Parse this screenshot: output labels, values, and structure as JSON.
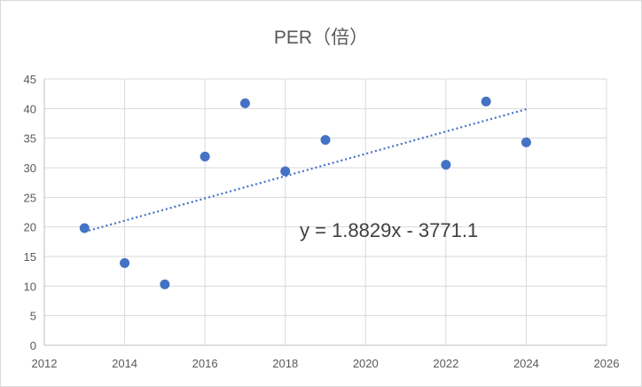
{
  "chart_data": {
    "type": "scatter",
    "title": "PER（倍）",
    "xlim": [
      2012,
      2026
    ],
    "ylim": [
      0,
      45
    ],
    "x_ticks": [
      2012,
      2014,
      2016,
      2018,
      2020,
      2022,
      2024,
      2026
    ],
    "y_ticks": [
      0,
      5,
      10,
      15,
      20,
      25,
      30,
      35,
      40,
      45
    ],
    "grid": true,
    "series": [
      {
        "points": [
          {
            "x": 2013,
            "y": 19.8
          },
          {
            "x": 2014,
            "y": 13.9
          },
          {
            "x": 2015,
            "y": 10.3
          },
          {
            "x": 2016,
            "y": 31.9
          },
          {
            "x": 2017,
            "y": 40.9
          },
          {
            "x": 2018,
            "y": 29.4
          },
          {
            "x": 2019,
            "y": 34.7
          },
          {
            "x": 2022,
            "y": 30.5
          },
          {
            "x": 2023,
            "y": 41.2
          },
          {
            "x": 2024,
            "y": 34.3
          }
        ],
        "color": "#4472c4"
      }
    ],
    "trendline": {
      "type": "linear",
      "slope": 1.8829,
      "intercept": -3771.1,
      "x_range": [
        2013,
        2024
      ],
      "equation_label": "y = 1.8829x - 3771.1",
      "color": "#4472c4"
    }
  }
}
